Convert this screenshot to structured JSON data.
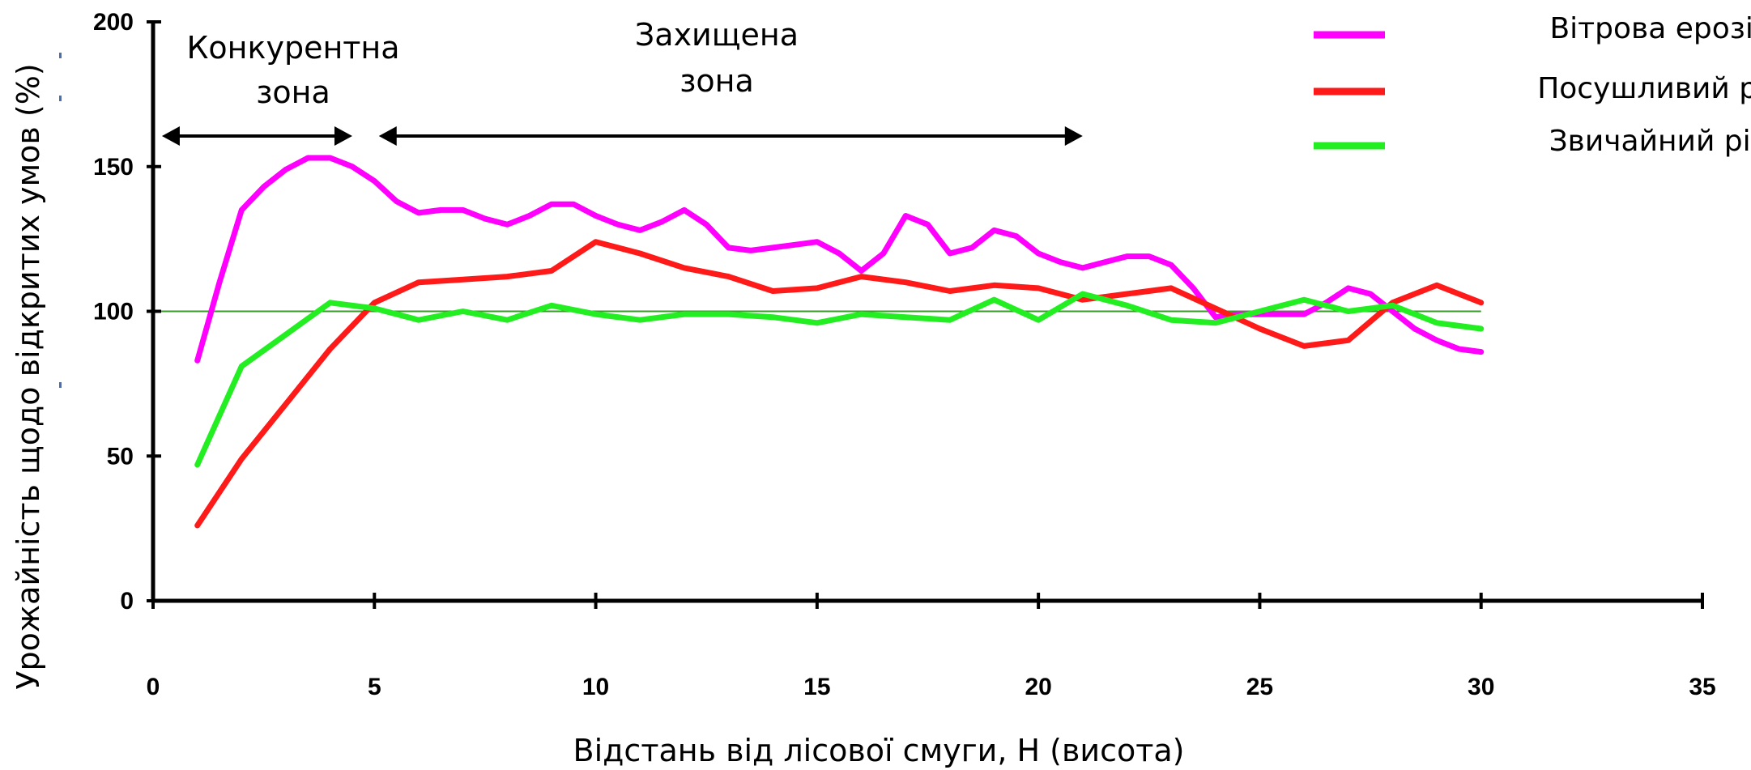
{
  "chart_data": {
    "type": "line",
    "xlabel": "Відстань від лісової смуги, Н (висота)",
    "ylabel": "Урожайність щодо відкритих умов (%)",
    "xlim": [
      0,
      35
    ],
    "ylim": [
      0,
      200
    ],
    "x_ticks": [
      "0",
      "5",
      "10",
      "15",
      "20",
      "25",
      "30",
      "35"
    ],
    "y_ticks": [
      "0",
      "50",
      "100",
      "150",
      "200"
    ],
    "reference_line": {
      "y": 100,
      "color": "#3a9a2a"
    },
    "grid": false,
    "legend_position": "top-right",
    "annotations": [
      {
        "text_lines": [
          "Конкурентна",
          "зона"
        ],
        "arrow_from": 0.2,
        "arrow_to": 4.5
      },
      {
        "text_lines": [
          "Захищена",
          "зона"
        ],
        "arrow_from": 5.1,
        "arrow_to": 21
      }
    ],
    "series": [
      {
        "name": "Вітрова ерозія",
        "color": "#ff00ff",
        "x": [
          1,
          1.5,
          2,
          2.5,
          3,
          3.5,
          4,
          4.5,
          5,
          5.5,
          6,
          6.5,
          7,
          7.5,
          8,
          8.5,
          9,
          9.5,
          10,
          10.5,
          11,
          11.5,
          12,
          12.5,
          13,
          13.5,
          14,
          14.5,
          15,
          15.5,
          16,
          16.5,
          17,
          17.5,
          18,
          18.5,
          19,
          19.5,
          20,
          20.5,
          21,
          21.5,
          22,
          22.5,
          23,
          23.5,
          24,
          24.5,
          25,
          25.5,
          26,
          26.5,
          27,
          27.5,
          28,
          28.5,
          29,
          29.5,
          30
        ],
        "values": [
          83,
          110,
          135,
          143,
          149,
          153,
          153,
          150,
          145,
          138,
          134,
          135,
          135,
          132,
          130,
          133,
          137,
          137,
          133,
          130,
          128,
          131,
          135,
          130,
          122,
          121,
          122,
          123,
          124,
          120,
          114,
          120,
          133,
          130,
          120,
          122,
          128,
          126,
          120,
          117,
          115,
          117,
          119,
          119,
          116,
          108,
          98,
          99,
          99,
          99,
          99,
          103,
          108,
          106,
          100,
          94,
          90,
          87,
          86
        ]
      },
      {
        "name": "Посушливий рік",
        "color": "#ff1a1a",
        "x": [
          1,
          2,
          3,
          4,
          5,
          6,
          7,
          8,
          9,
          10,
          11,
          12,
          13,
          14,
          15,
          16,
          17,
          18,
          19,
          20,
          21,
          22,
          23,
          24,
          25,
          26,
          27,
          28,
          29,
          30
        ],
        "values": [
          26,
          49,
          68,
          87,
          103,
          110,
          111,
          112,
          114,
          124,
          120,
          115,
          112,
          107,
          108,
          112,
          110,
          107,
          109,
          108,
          104,
          106,
          108,
          101,
          94,
          88,
          90,
          103,
          109,
          103
        ]
      },
      {
        "name": "Звичайний рік",
        "color": "#22ee22",
        "x": [
          1,
          2,
          3,
          4,
          5,
          6,
          7,
          8,
          9,
          10,
          11,
          12,
          13,
          14,
          15,
          16,
          17,
          18,
          19,
          20,
          21,
          22,
          23,
          24,
          25,
          26,
          27,
          28,
          29,
          30
        ],
        "values": [
          47,
          81,
          92,
          103,
          101,
          97,
          100,
          97,
          102,
          99,
          97,
          99,
          99,
          98,
          96,
          99,
          98,
          97,
          104,
          97,
          106,
          102,
          97,
          96,
          100,
          104,
          100,
          102,
          96,
          94
        ]
      }
    ]
  }
}
